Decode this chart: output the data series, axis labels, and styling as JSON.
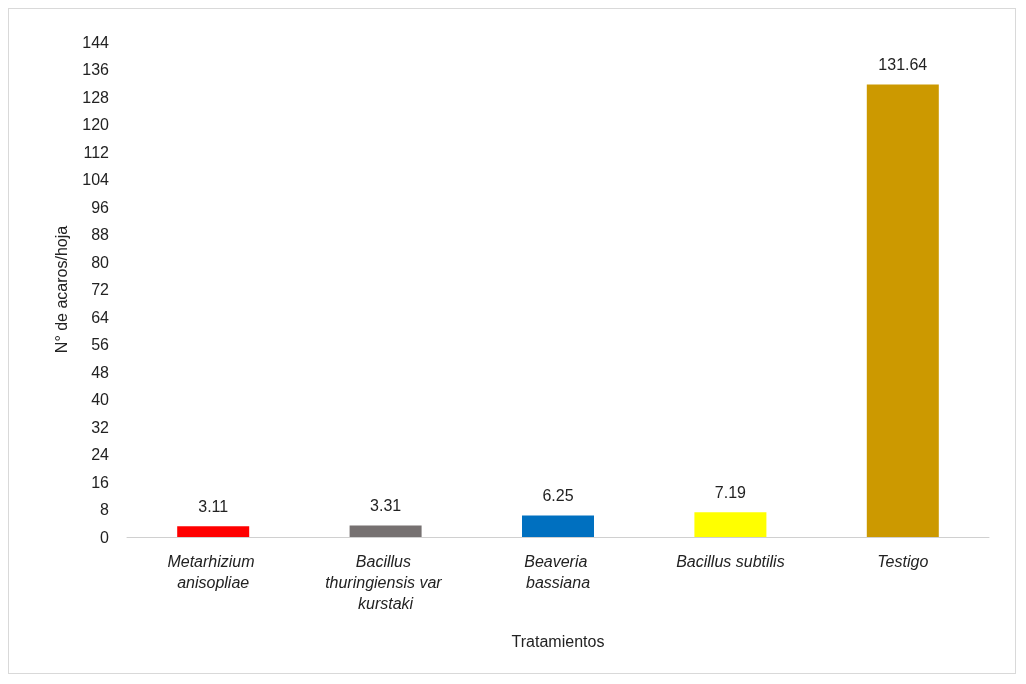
{
  "chart_data": {
    "type": "bar",
    "categories": [
      "Metarhizium anisopliae",
      "Bacillus thuringiensis var kurstaki",
      "Beaveria bassiana",
      "Bacillus subtilis",
      "Testigo"
    ],
    "values": [
      3.11,
      3.31,
      6.25,
      7.19,
      131.64
    ],
    "colors": [
      "#ff0000",
      "#767171",
      "#0070c0",
      "#ffff00",
      "#cc9900"
    ],
    "xlabel": "Tratamientos",
    "ylabel": "N° de acaros/hoja",
    "ylim": [
      0,
      144
    ],
    "yticks": [
      0,
      8,
      16,
      24,
      32,
      40,
      48,
      56,
      64,
      72,
      80,
      88,
      96,
      104,
      112,
      120,
      128,
      136,
      144
    ],
    "data_labels": true
  }
}
